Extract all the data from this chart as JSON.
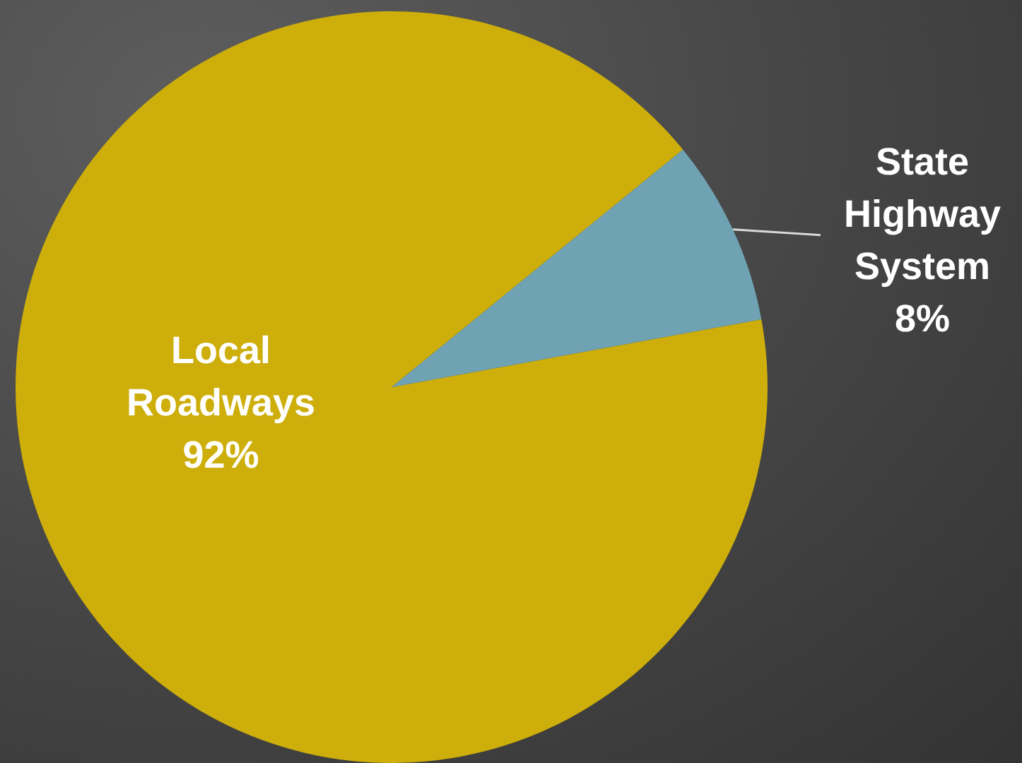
{
  "chart_data": {
    "type": "pie",
    "categories": [
      "Local Roadways",
      "State Highway System"
    ],
    "values": [
      92,
      8
    ],
    "colors": [
      "#cdae0a",
      "#6fa3b3"
    ],
    "value_labels": [
      "92%",
      "8%"
    ]
  }
}
